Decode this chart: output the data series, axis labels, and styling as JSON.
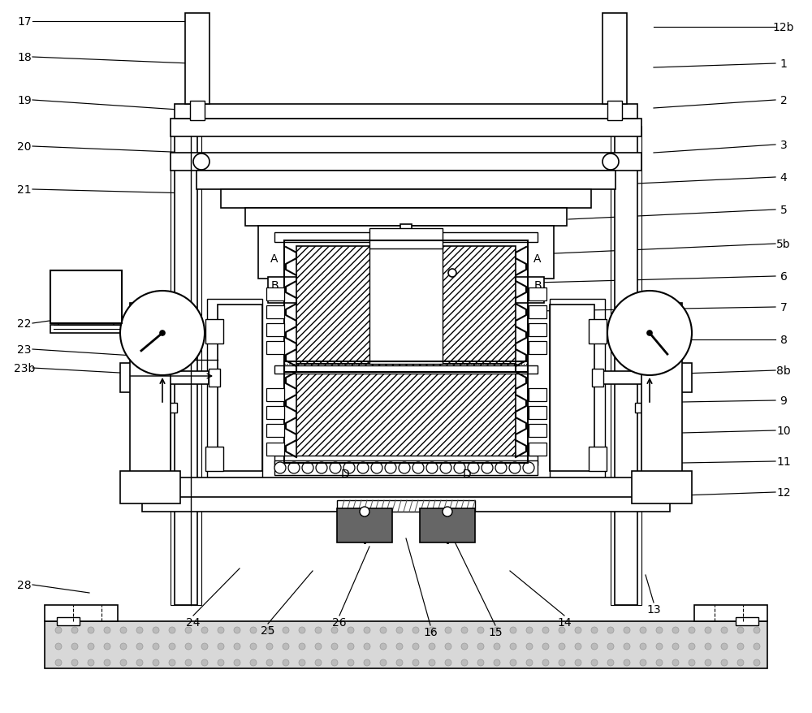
{
  "bg_color": "#ffffff",
  "line_color": "#000000",
  "gray_dark": "#666666",
  "gray_light": "#d8d8d8",
  "gray_dot": "#aaaaaa",
  "right_annots": [
    [
      "12b",
      965,
      845,
      805,
      845
    ],
    [
      "1",
      965,
      800,
      805,
      795
    ],
    [
      "2",
      965,
      755,
      805,
      745
    ],
    [
      "3",
      965,
      700,
      805,
      690
    ],
    [
      "4",
      965,
      660,
      740,
      650
    ],
    [
      "5",
      965,
      620,
      700,
      608
    ],
    [
      "5b",
      965,
      578,
      660,
      565
    ],
    [
      "6",
      965,
      538,
      660,
      530
    ],
    [
      "7",
      965,
      500,
      660,
      495
    ],
    [
      "8",
      965,
      460,
      840,
      460
    ],
    [
      "8b",
      965,
      422,
      840,
      418
    ],
    [
      "9",
      965,
      385,
      840,
      383
    ],
    [
      "10",
      965,
      348,
      840,
      345
    ],
    [
      "11",
      965,
      310,
      840,
      308
    ],
    [
      "12",
      965,
      272,
      840,
      268
    ]
  ],
  "left_annots": [
    [
      "17",
      30,
      852,
      235,
      852
    ],
    [
      "18",
      30,
      808,
      235,
      800
    ],
    [
      "19",
      30,
      755,
      235,
      742
    ],
    [
      "20",
      30,
      698,
      235,
      690
    ],
    [
      "21",
      30,
      645,
      235,
      640
    ],
    [
      "22",
      30,
      480,
      110,
      490
    ],
    [
      "23",
      30,
      448,
      165,
      440
    ],
    [
      "23b",
      30,
      425,
      165,
      418
    ],
    [
      "28",
      30,
      158,
      110,
      148
    ]
  ],
  "bottom_annots": [
    [
      "24",
      238,
      112,
      295,
      178
    ],
    [
      "25",
      330,
      102,
      385,
      175
    ],
    [
      "26",
      418,
      112,
      455,
      205
    ],
    [
      "16",
      530,
      100,
      500,
      215
    ],
    [
      "15",
      610,
      100,
      558,
      215
    ],
    [
      "14",
      695,
      112,
      628,
      175
    ],
    [
      "13",
      805,
      128,
      795,
      170
    ]
  ]
}
